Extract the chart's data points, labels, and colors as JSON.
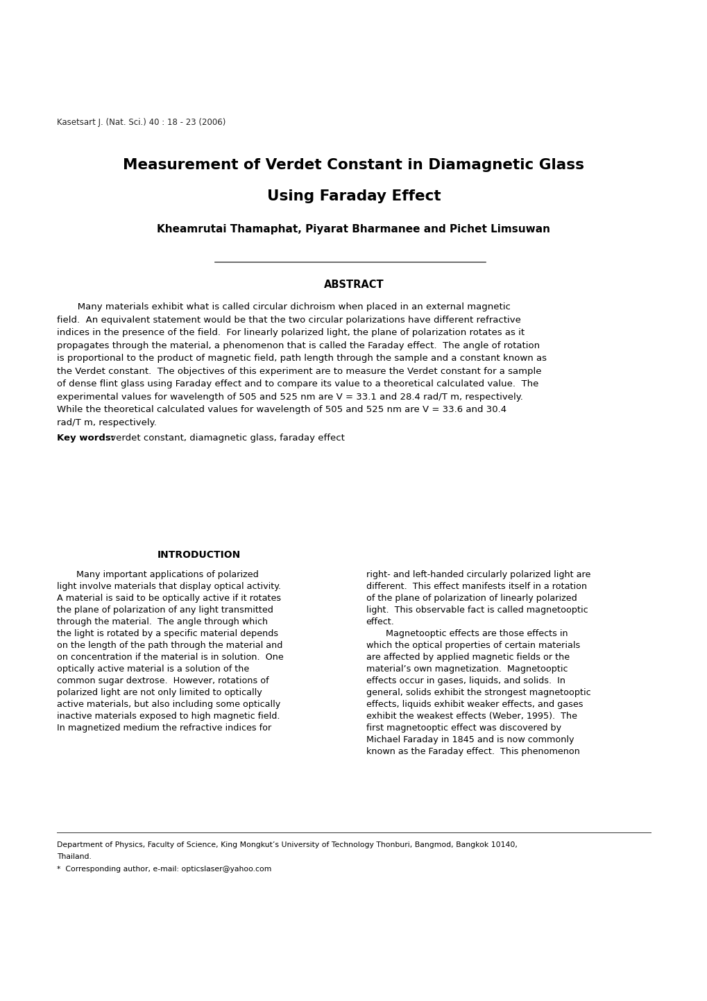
{
  "background_color": "#ffffff",
  "page_width": 10.2,
  "page_height": 14.43,
  "journal_ref": "Kasetsart J. (Nat. Sci.) 40 : 18 - 23 (2006)",
  "title_line1": "Measurement of Verdet Constant in Diamagnetic Glass",
  "title_line2": "Using Faraday Effect",
  "authors": "Kheamrutai Thamaphat, Piyarat Bharmanee and Pichet Limsuwan",
  "section_abstract": "ABSTRACT",
  "keywords_bold": "Key words:",
  "keywords_text": " verdet constant, diamagnetic glass, faraday effect",
  "section_intro": "INTRODUCTION",
  "abstract_lines": [
    "       Many materials exhibit what is called circular dichroism when placed in an external magnetic",
    "field.  An equivalent statement would be that the two circular polarizations have different refractive",
    "indices in the presence of the field.  For linearly polarized light, the plane of polarization rotates as it",
    "propagates through the material, a phenomenon that is called the Faraday effect.  The angle of rotation",
    "is proportional to the product of magnetic field, path length through the sample and a constant known as",
    "the Verdet constant.  The objectives of this experiment are to measure the Verdet constant for a sample",
    "of dense flint glass using Faraday effect and to compare its value to a theoretical calculated value.  The",
    "experimental values for wavelength of 505 and 525 nm are V = 33.1 and 28.4 rad/T m, respectively.",
    "While the theoretical calculated values for wavelength of 505 and 525 nm are V = 33.6 and 30.4",
    "rad/T m, respectively."
  ],
  "left_col_lines": [
    "       Many important applications of polarized",
    "light involve materials that display optical activity.",
    "A material is said to be optically active if it rotates",
    "the plane of polarization of any light transmitted",
    "through the material.  The angle through which",
    "the light is rotated by a specific material depends",
    "on the length of the path through the material and",
    "on concentration if the material is in solution.  One",
    "optically active material is a solution of the",
    "common sugar dextrose.  However, rotations of",
    "polarized light are not only limited to optically",
    "active materials, but also including some optically",
    "inactive materials exposed to high magnetic field.",
    "In magnetized medium the refractive indices for"
  ],
  "right_col_lines": [
    "right- and left-handed circularly polarized light are",
    "different.  This effect manifests itself in a rotation",
    "of the plane of polarization of linearly polarized",
    "light.  This observable fact is called magnetooptic",
    "effect.",
    "       Magnetooptic effects are those effects in",
    "which the optical properties of certain materials",
    "are affected by applied magnetic fields or the",
    "material’s own magnetization.  Magnetooptic",
    "effects occur in gases, liquids, and solids.  In",
    "general, solids exhibit the strongest magnetooptic",
    "effects, liquids exhibit weaker effects, and gases",
    "exhibit the weakest effects (Weber, 1995).  The",
    "first magnetooptic effect was discovered by",
    "Michael Faraday in 1845 and is now commonly",
    "known as the Faraday effect.  This phenomenon"
  ],
  "footer_line1a": "Department of Physics, Faculty of Science, King Mongkut’s University of Technology Thonburi, Bangmod, Bangkok 10140,",
  "footer_line1b": "Thailand.",
  "footer_line2": "*  Corresponding author, e-mail: opticslaser@yahoo.com"
}
